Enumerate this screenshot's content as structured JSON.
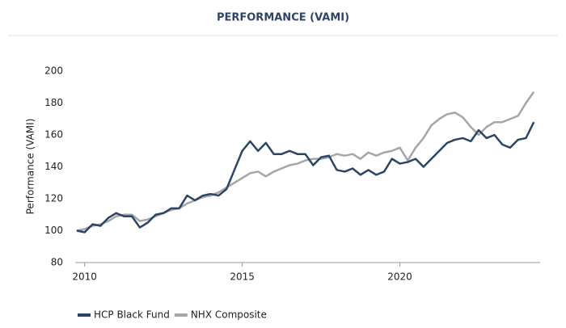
{
  "chart_data": {
    "type": "line",
    "title": "PERFORMANCE (VAMI)",
    "y_label": "Performance (VAMI)",
    "x": [
      2009.75,
      2010,
      2010.25,
      2010.5,
      2010.75,
      2011,
      2011.25,
      2011.5,
      2011.75,
      2012,
      2012.25,
      2012.5,
      2012.75,
      2013,
      2013.25,
      2013.5,
      2013.75,
      2014,
      2014.25,
      2014.5,
      2014.75,
      2015,
      2015.25,
      2015.5,
      2015.75,
      2016,
      2016.25,
      2016.5,
      2016.75,
      2017,
      2017.25,
      2017.5,
      2017.75,
      2018,
      2018.25,
      2018.5,
      2018.75,
      2019,
      2019.25,
      2019.5,
      2019.75,
      2020,
      2020.25,
      2020.5,
      2020.75,
      2021,
      2021.25,
      2021.5,
      2021.75,
      2022,
      2022.25,
      2022.5,
      2022.75,
      2023,
      2023.25,
      2023.5,
      2023.75,
      2024,
      2024.25
    ],
    "series": [
      {
        "name": "HCP Black Fund",
        "color": "#2d4466",
        "values": [
          100,
          99,
          104,
          103,
          108,
          111,
          109,
          109,
          102,
          105,
          110,
          111,
          114,
          114,
          122,
          119,
          122,
          123,
          122,
          126,
          138,
          150,
          156,
          150,
          155,
          148,
          148,
          150,
          148,
          148,
          141,
          146,
          147,
          138,
          137,
          139,
          135,
          138,
          135,
          137,
          145,
          142,
          143,
          145,
          140,
          145,
          150,
          155,
          157,
          158,
          156,
          163,
          158,
          160,
          154,
          152,
          157,
          158,
          168
        ]
      },
      {
        "name": "NHX Composite",
        "color": "#a6a6a6",
        "values": [
          100,
          101,
          103,
          104,
          106,
          109,
          110,
          110,
          106,
          107,
          109,
          111,
          113,
          114,
          117,
          119,
          121,
          122,
          124,
          127,
          130,
          133,
          136,
          137,
          134,
          137,
          139,
          141,
          142,
          144,
          145,
          145,
          146,
          148,
          147,
          148,
          145,
          149,
          147,
          149,
          150,
          152,
          144,
          152,
          158,
          166,
          170,
          173,
          174,
          171,
          165,
          160,
          165,
          168,
          168,
          170,
          172,
          180,
          187
        ]
      }
    ],
    "xlim": [
      2009.7,
      2024.45
    ],
    "xticks": [
      2010,
      2015,
      2020
    ],
    "ylim": [
      80,
      200
    ],
    "yticks": [
      80,
      100,
      120,
      140,
      160,
      180,
      200
    ],
    "grid": false
  }
}
